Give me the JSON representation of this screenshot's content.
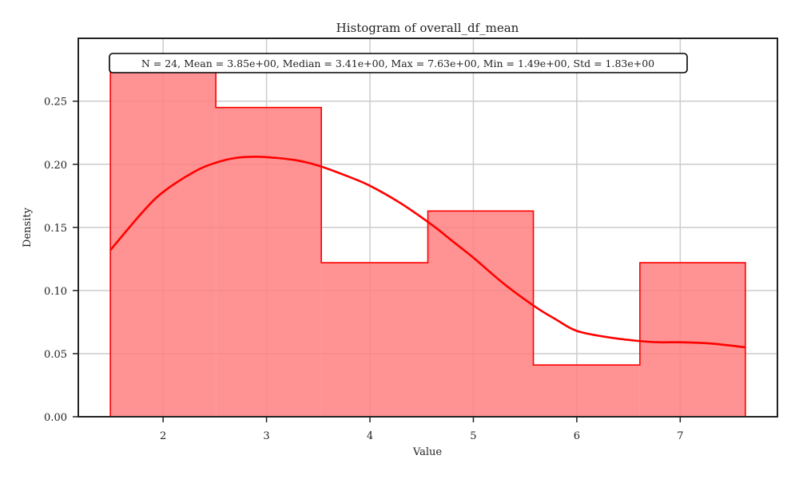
{
  "chart_data": {
    "type": "histogram",
    "title": "Histogram of overall_df_mean",
    "xlabel": "Value",
    "ylabel": "Density",
    "xlim": [
      1.18,
      7.94
    ],
    "ylim": [
      0,
      0.2998
    ],
    "xticks": [
      2,
      3,
      4,
      5,
      6,
      7
    ],
    "yticks": [
      0,
      0.05,
      0.1,
      0.15,
      0.2,
      0.25
    ],
    "ytick_labels": [
      "0.00",
      "0.05",
      "0.10",
      "0.15",
      "0.20",
      "0.25"
    ],
    "grid": true,
    "bar_color": "#ff7f7f",
    "edge_color": "#ff0000",
    "kde_color": "#ff0000",
    "bins": [
      {
        "x0": 1.49,
        "x1": 2.51,
        "density": 0.274
      },
      {
        "x0": 2.51,
        "x1": 3.53,
        "density": 0.245
      },
      {
        "x0": 3.53,
        "x1": 4.56,
        "density": 0.122
      },
      {
        "x0": 4.56,
        "x1": 5.58,
        "density": 0.163
      },
      {
        "x0": 5.58,
        "x1": 6.61,
        "density": 0.041
      },
      {
        "x0": 6.61,
        "x1": 7.63,
        "density": 0.122
      }
    ],
    "kde": {
      "x": [
        1.49,
        1.8,
        2.0,
        2.3,
        2.5,
        2.7,
        2.9,
        3.1,
        3.3,
        3.5,
        3.8,
        4.0,
        4.3,
        4.6,
        4.8,
        5.0,
        5.3,
        5.6,
        5.8,
        6.0,
        6.3,
        6.6,
        6.8,
        7.0,
        7.3,
        7.63
      ],
      "y": [
        0.132,
        0.162,
        0.178,
        0.194,
        0.201,
        0.205,
        0.206,
        0.205,
        0.203,
        0.199,
        0.19,
        0.183,
        0.169,
        0.152,
        0.139,
        0.126,
        0.105,
        0.087,
        0.077,
        0.068,
        0.063,
        0.06,
        0.059,
        0.059,
        0.058,
        0.055
      ]
    },
    "stats_box": "N = 24, Mean = 3.85e+00, Median = 3.41e+00, Max = 7.63e+00, Min = 1.49e+00, Std = 1.83e+00"
  }
}
